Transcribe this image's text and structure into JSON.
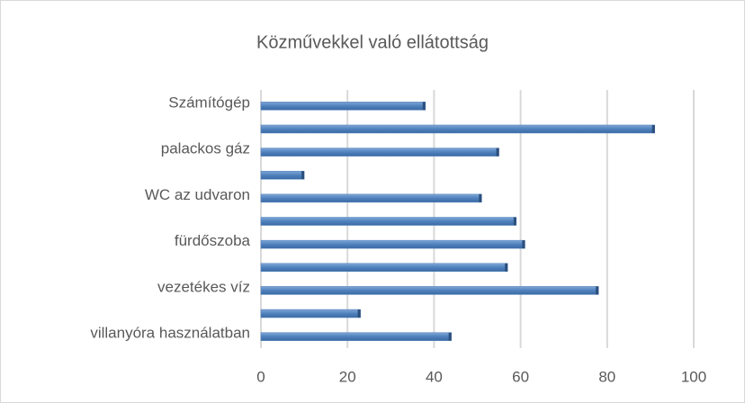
{
  "chart_data": {
    "type": "bar",
    "orientation": "horizontal",
    "title": "Közművekkel való ellátottság",
    "categories": [
      "villanyóra használatban",
      null,
      "vezetékes víz",
      null,
      "fürdőszoba",
      null,
      "WC az udvaron",
      null,
      "palackos gáz",
      null,
      "Számítógép"
    ],
    "values": [
      44,
      23,
      78,
      57,
      61,
      59,
      51,
      10,
      55,
      91,
      38
    ],
    "color": "#4f81bd",
    "xlim": [
      0,
      100
    ],
    "xticks": [
      0,
      20,
      40,
      60,
      80,
      100
    ],
    "grid": true
  }
}
